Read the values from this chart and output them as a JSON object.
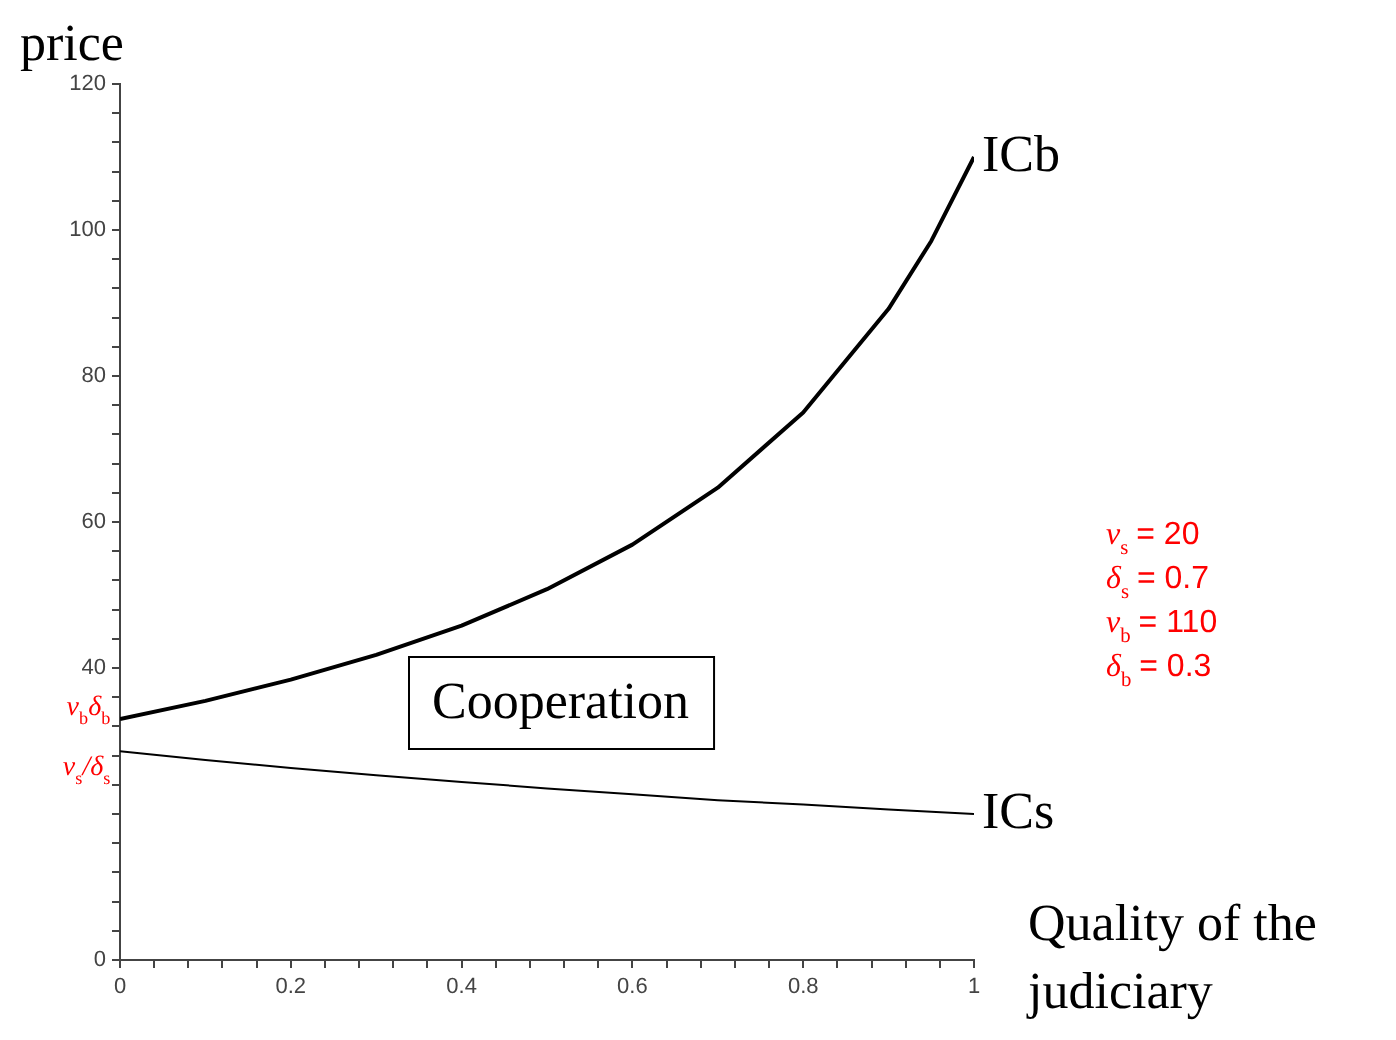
{
  "chart_data": {
    "type": "line",
    "xlabel": "Quality of the judiciary",
    "ylabel": "price",
    "x": [
      0,
      0.1,
      0.2,
      0.3,
      0.4,
      0.5,
      0.6,
      0.7,
      0.8,
      0.9,
      0.95,
      1
    ],
    "series": [
      {
        "name": "ICb",
        "color": "#000000",
        "values": [
          33,
          35.5,
          38.4,
          41.8,
          45.8,
          50.8,
          56.9,
          64.7,
          75,
          89.2,
          98.5,
          110
        ]
      },
      {
        "name": "ICs",
        "color": "#000000",
        "values": [
          28.6,
          27.4,
          26.3,
          25.3,
          24.4,
          23.5,
          22.7,
          21.9,
          21.3,
          20.6,
          20.3,
          20
        ]
      }
    ],
    "xlim": [
      0,
      1
    ],
    "ylim": [
      0,
      120
    ],
    "xticks": [
      0,
      {
        "value": 0.04,
        "label": null
      },
      {
        "value": 0.08,
        "label": null
      },
      {
        "value": 0.12,
        "label": null
      },
      {
        "value": 0.16,
        "label": null
      },
      0.2,
      {
        "value": 0.24,
        "label": null
      },
      {
        "value": 0.28,
        "label": null
      },
      {
        "value": 0.32,
        "label": null
      },
      {
        "value": 0.36,
        "label": null
      },
      0.4,
      {
        "value": 0.44,
        "label": null
      },
      {
        "value": 0.48,
        "label": null
      },
      {
        "value": 0.52,
        "label": null
      },
      {
        "value": 0.56,
        "label": null
      },
      0.6,
      {
        "value": 0.64,
        "label": null
      },
      {
        "value": 0.68,
        "label": null
      },
      {
        "value": 0.72,
        "label": null
      },
      {
        "value": 0.76,
        "label": null
      },
      0.8,
      {
        "value": 0.84,
        "label": null
      },
      {
        "value": 0.88,
        "label": null
      },
      {
        "value": 0.92,
        "label": null
      },
      {
        "value": 0.96,
        "label": null
      },
      1
    ],
    "yticks": [
      0,
      {
        "value": 4,
        "label": null
      },
      {
        "value": 8,
        "label": null
      },
      {
        "value": 12,
        "label": null
      },
      {
        "value": 16,
        "label": null
      },
      {
        "value": 20,
        "label": null
      },
      {
        "value": 24,
        "label": null
      },
      {
        "value": 28,
        "label": null
      },
      {
        "value": 32,
        "label": null
      },
      {
        "value": 36,
        "label": null
      },
      40,
      {
        "value": 44,
        "label": null
      },
      {
        "value": 48,
        "label": null
      },
      {
        "value": 52,
        "label": null
      },
      {
        "value": 56,
        "label": null
      },
      60,
      {
        "value": 64,
        "label": null
      },
      {
        "value": 68,
        "label": null
      },
      {
        "value": 72,
        "label": null
      },
      {
        "value": 76,
        "label": null
      },
      80,
      {
        "value": 84,
        "label": null
      },
      {
        "value": 88,
        "label": null
      },
      {
        "value": 92,
        "label": null
      },
      {
        "value": 96,
        "label": null
      },
      100,
      {
        "value": 104,
        "label": null
      },
      {
        "value": 108,
        "label": null
      },
      {
        "value": 112,
        "label": null
      },
      {
        "value": 116,
        "label": null
      },
      120
    ],
    "grid": false,
    "legend": false,
    "marker": "none",
    "line_style": "solid",
    "annotations": [
      "Cooperation",
      {
        "text": "v$_{b}$δ$_{b}$",
        "x": 0,
        "y": 33
      },
      {
        "text": "v$_{s}$/δ$_{s}$",
        "x": 0,
        "y": 28.6
      },
      "v$_{s}$ = 20",
      "δ$_{s}$ = 0.7",
      "v$_{b}$ = 110",
      "δ$_{b}$ = 0.3"
    ]
  }
}
